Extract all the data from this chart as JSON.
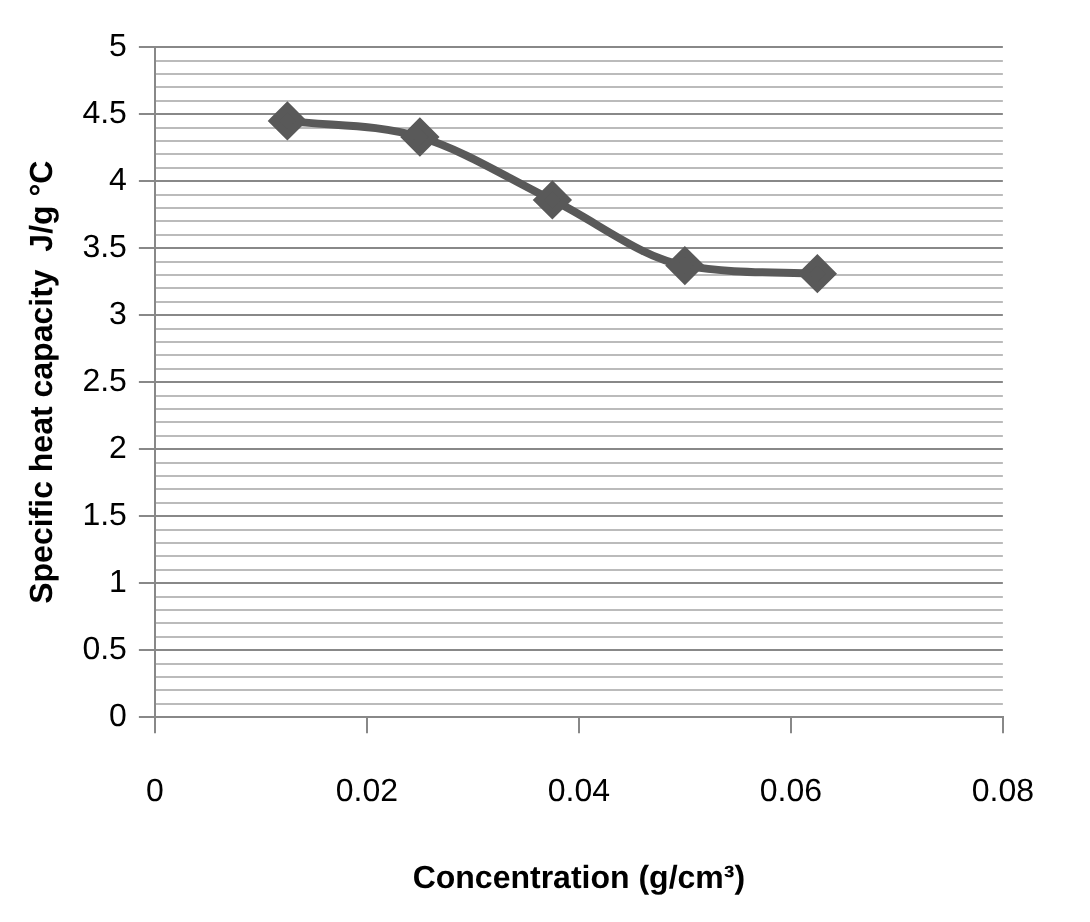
{
  "chart_data": {
    "type": "line",
    "xlabel": "Concentration (g/cm³)",
    "ylabel": "Specific heat capacity  J/g °C",
    "x": [
      0.0125,
      0.025,
      0.0375,
      0.05,
      0.0625
    ],
    "series": [
      {
        "color": "#595959",
        "values": [
          4.45,
          4.33,
          3.86,
          3.37,
          3.31
        ]
      }
    ],
    "xlim": [
      0,
      0.08
    ],
    "xticks": [
      0,
      0.02,
      0.04,
      0.06,
      0.08
    ],
    "ylim": [
      0,
      5
    ],
    "yticks": [
      0,
      {
        "value": 0.1,
        "label": null
      },
      {
        "value": 0.2,
        "label": null
      },
      {
        "value": 0.3,
        "label": null
      },
      {
        "value": 0.4,
        "label": null
      },
      0.5,
      {
        "value": 0.6,
        "label": null
      },
      {
        "value": 0.7,
        "label": null
      },
      {
        "value": 0.8,
        "label": null
      },
      {
        "value": 0.9,
        "label": null
      },
      1,
      {
        "value": 1.1,
        "label": null
      },
      {
        "value": 1.2,
        "label": null
      },
      {
        "value": 1.3,
        "label": null
      },
      {
        "value": 1.4,
        "label": null
      },
      1.5,
      {
        "value": 1.6,
        "label": null
      },
      {
        "value": 1.7,
        "label": null
      },
      {
        "value": 1.8,
        "label": null
      },
      {
        "value": 1.9,
        "label": null
      },
      2,
      {
        "value": 2.1,
        "label": null
      },
      {
        "value": 2.2,
        "label": null
      },
      {
        "value": 2.3,
        "label": null
      },
      {
        "value": 2.4,
        "label": null
      },
      2.5,
      {
        "value": 2.6,
        "label": null
      },
      {
        "value": 2.7,
        "label": null
      },
      {
        "value": 2.8,
        "label": null
      },
      {
        "value": 2.9,
        "label": null
      },
      3,
      {
        "value": 3.1,
        "label": null
      },
      {
        "value": 3.2,
        "label": null
      },
      {
        "value": 3.3,
        "label": null
      },
      {
        "value": 3.4,
        "label": null
      },
      3.5,
      {
        "value": 3.6,
        "label": null
      },
      {
        "value": 3.7,
        "label": null
      },
      {
        "value": 3.8,
        "label": null
      },
      {
        "value": 3.9,
        "label": null
      },
      4,
      {
        "value": 4.1,
        "label": null
      },
      {
        "value": 4.2,
        "label": null
      },
      {
        "value": 4.3,
        "label": null
      },
      {
        "value": 4.4,
        "label": null
      },
      4.5,
      {
        "value": 4.6,
        "label": null
      },
      {
        "value": 4.7,
        "label": null
      },
      {
        "value": 4.8,
        "label": null
      },
      {
        "value": 4.9,
        "label": null
      },
      5
    ],
    "grid": "y",
    "marker": "diamond",
    "line_style": "solid",
    "legend": false
  }
}
